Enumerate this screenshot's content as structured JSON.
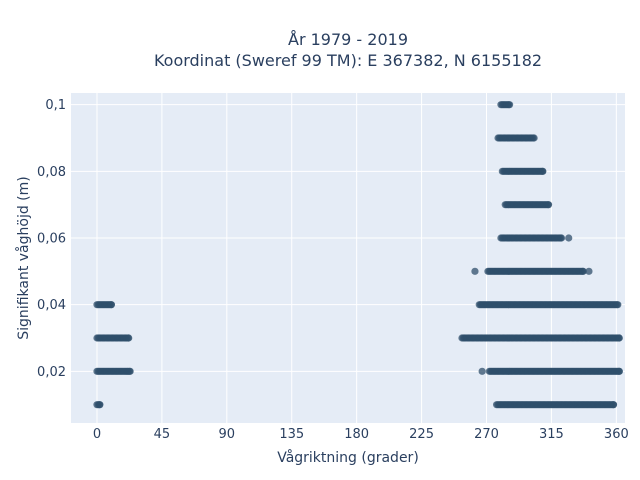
{
  "chart_data": {
    "type": "scatter",
    "title_line1": "År 1979 - 2019",
    "title_line2": "Koordinat (Sweref 99 TM): E 367382, N 6155182",
    "xlabel": "Vågriktning (grader)",
    "ylabel": "Signifikant våghöjd (m)",
    "xlim": [
      -18,
      366
    ],
    "ylim": [
      0.0045,
      0.1035
    ],
    "x_ticks": [
      0,
      45,
      90,
      135,
      180,
      225,
      270,
      315,
      360
    ],
    "x_tick_labels": [
      "0",
      "45",
      "90",
      "135",
      "180",
      "225",
      "270",
      "315",
      "360"
    ],
    "y_ticks": [
      0.02,
      0.04,
      0.06,
      0.08,
      0.1
    ],
    "y_tick_labels": [
      "0,02",
      "0,04",
      "0,06",
      "0,08",
      "0,1"
    ],
    "grid": true,
    "background": "#e5ecf6",
    "marker_color": "#2f4f6b",
    "marker_opacity": 0.75,
    "point_groups": [
      {
        "y": 0.1,
        "x_min": 280,
        "x_max": 286,
        "outliers": []
      },
      {
        "y": 0.09,
        "x_min": 278,
        "x_max": 303,
        "outliers": []
      },
      {
        "y": 0.08,
        "x_min": 281,
        "x_max": 309,
        "outliers": []
      },
      {
        "y": 0.07,
        "x_min": 283,
        "x_max": 313,
        "outliers": []
      },
      {
        "y": 0.06,
        "x_min": 280,
        "x_max": 322,
        "outliers": [
          327
        ]
      },
      {
        "y": 0.05,
        "x_min": 271,
        "x_max": 337,
        "outliers": [
          262,
          341
        ]
      },
      {
        "y": 0.04,
        "x_min": 265,
        "x_max": 361,
        "outliers": []
      },
      {
        "y": 0.04,
        "x_min": 0,
        "x_max": 10,
        "outliers": []
      },
      {
        "y": 0.03,
        "x_min": 253,
        "x_max": 362,
        "outliers": []
      },
      {
        "y": 0.03,
        "x_min": 0,
        "x_max": 22,
        "outliers": []
      },
      {
        "y": 0.02,
        "x_min": 272,
        "x_max": 362,
        "outliers": [
          267
        ]
      },
      {
        "y": 0.02,
        "x_min": 0,
        "x_max": 23,
        "outliers": []
      },
      {
        "y": 0.01,
        "x_min": 277,
        "x_max": 358,
        "outliers": []
      },
      {
        "y": 0.01,
        "x_min": 0,
        "x_max": 2,
        "outliers": []
      }
    ]
  }
}
